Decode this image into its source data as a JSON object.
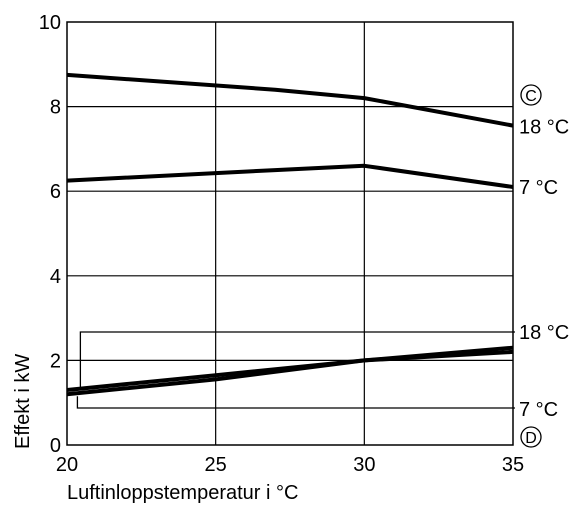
{
  "chart_data": {
    "type": "line",
    "xlabel": "Luftinloppstemperatur i °C",
    "ylabel": "Effekt i kW",
    "xlim": [
      20,
      35
    ],
    "ylim": [
      0,
      10
    ],
    "x_ticks": [
      20,
      25,
      30,
      35
    ],
    "y_ticks": [
      0,
      2,
      4,
      6,
      8,
      10
    ],
    "grid": true,
    "legend": "none",
    "groups": [
      {
        "marker": "C",
        "series": [
          {
            "name": "18 °C",
            "x": [
              20,
              27,
              30,
              35
            ],
            "y": [
              8.75,
              8.4,
              8.2,
              7.55
            ]
          },
          {
            "name": "7 °C",
            "x": [
              20,
              27,
              30,
              35
            ],
            "y": [
              6.25,
              6.5,
              6.6,
              6.1
            ]
          }
        ]
      },
      {
        "marker": "D",
        "series": [
          {
            "name": "18 °C",
            "x": [
              20,
              25,
              30,
              35
            ],
            "y": [
              1.3,
              1.65,
              2.0,
              2.2
            ]
          },
          {
            "name": "7 °C",
            "x": [
              20,
              25,
              30,
              35
            ],
            "y": [
              1.2,
              1.55,
              2.0,
              2.3
            ]
          }
        ]
      }
    ]
  }
}
